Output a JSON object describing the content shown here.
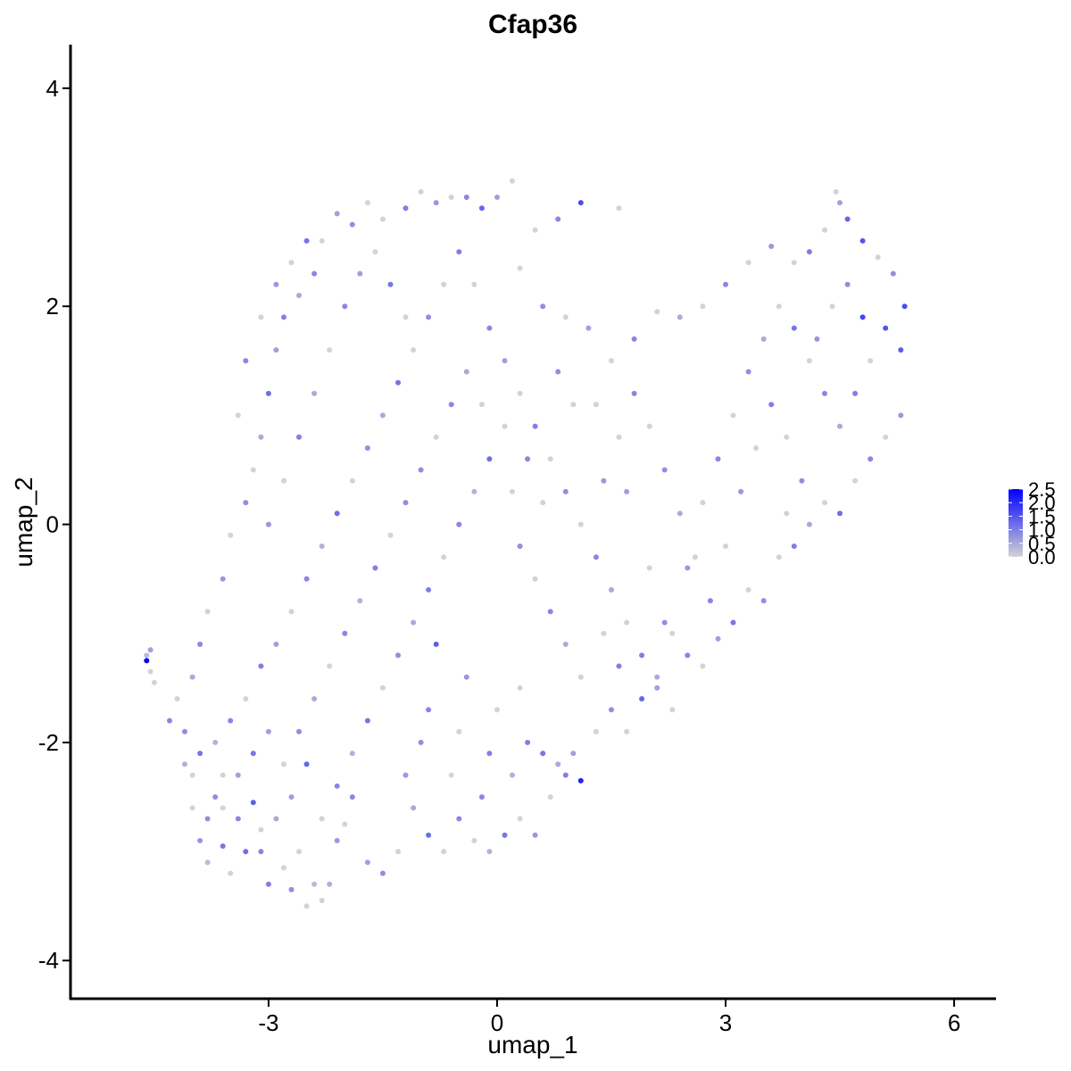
{
  "chart_data": {
    "type": "scatter",
    "title": "Cfap36",
    "xlabel": "umap_1",
    "ylabel": "umap_2",
    "xlim": [
      -5.6,
      6.55
    ],
    "ylim": [
      -4.35,
      4.4
    ],
    "xticks": [
      -3,
      0,
      3,
      6
    ],
    "yticks": [
      -4,
      -2,
      0,
      2,
      4
    ],
    "xtick_labels": [
      "-3",
      "0",
      "3",
      "6"
    ],
    "ytick_labels": [
      "-4",
      "-2",
      "0",
      "2",
      "4"
    ],
    "grid": false,
    "legend": {
      "placement": "right",
      "type": "colorbar",
      "min": 0,
      "max": 2.5,
      "ticks": [
        0,
        0.5,
        1,
        1.5,
        2,
        2.5
      ],
      "tick_labels": [
        "0.0",
        "0.5",
        "1.0",
        "1.5",
        "2.0",
        "2.5"
      ],
      "low_color": "#d3d3d3",
      "high_color": "#0000ff"
    },
    "points": [
      [
        -4.6,
        -1.25,
        2.5
      ],
      [
        -4.6,
        -1.2,
        0.3
      ],
      [
        -4.55,
        -1.15,
        0.6
      ],
      [
        -4.55,
        -1.35,
        0.0
      ],
      [
        -4.5,
        -1.45,
        0.0
      ],
      [
        -4.3,
        -1.8,
        0.9
      ],
      [
        -4.1,
        -2.2,
        0.4
      ],
      [
        -4.0,
        -2.6,
        0.0
      ],
      [
        -3.9,
        -2.9,
        0.7
      ],
      [
        -3.8,
        -3.1,
        0.3
      ],
      [
        -3.7,
        -2.5,
        0.8
      ],
      [
        -3.6,
        -2.95,
        1.1
      ],
      [
        -3.5,
        -3.2,
        0.0
      ],
      [
        -3.4,
        -2.3,
        0.6
      ],
      [
        -3.2,
        -2.55,
        1.4
      ],
      [
        -3.1,
        -3.0,
        0.9
      ],
      [
        -3.0,
        -3.3,
        1.0
      ],
      [
        -2.9,
        -2.7,
        0.5
      ],
      [
        -2.8,
        -3.15,
        0.0
      ],
      [
        -2.7,
        -3.35,
        0.8
      ],
      [
        -2.6,
        -3.0,
        0.0
      ],
      [
        -2.5,
        -3.5,
        0.0
      ],
      [
        -2.4,
        -3.3,
        0.3
      ],
      [
        -2.3,
        -3.45,
        0.0
      ],
      [
        -2.2,
        -3.3,
        0.4
      ],
      [
        -2.1,
        -2.9,
        0.7
      ],
      [
        -2.0,
        -2.75,
        0.0
      ],
      [
        -1.9,
        -2.5,
        0.9
      ],
      [
        -1.7,
        -3.1,
        0.6
      ],
      [
        -1.5,
        -3.2,
        0.8
      ],
      [
        -1.3,
        -3.0,
        0.0
      ],
      [
        -1.1,
        -2.6,
        0.5
      ],
      [
        -0.9,
        -2.85,
        1.2
      ],
      [
        -0.7,
        -3.0,
        0.0
      ],
      [
        -0.5,
        -2.7,
        0.9
      ],
      [
        -0.3,
        -2.9,
        0.0
      ],
      [
        -0.1,
        -3.0,
        0.4
      ],
      [
        0.1,
        -2.85,
        1.1
      ],
      [
        0.3,
        -2.7,
        0.0
      ],
      [
        0.5,
        -2.85,
        0.7
      ],
      [
        0.7,
        -2.5,
        0.0
      ],
      [
        0.9,
        -2.3,
        1.0
      ],
      [
        1.1,
        -2.35,
        2.1
      ],
      [
        1.0,
        -2.1,
        0.6
      ],
      [
        1.3,
        -1.9,
        0.0
      ],
      [
        1.5,
        -1.7,
        0.8
      ],
      [
        1.7,
        -1.9,
        0.0
      ],
      [
        1.9,
        -1.6,
        1.3
      ],
      [
        2.1,
        -1.4,
        0.5
      ],
      [
        2.3,
        -1.0,
        0.0
      ],
      [
        2.5,
        -1.2,
        0.9
      ],
      [
        2.7,
        -1.3,
        0.0
      ],
      [
        2.9,
        -1.05,
        0.6
      ],
      [
        3.1,
        -0.9,
        1.1
      ],
      [
        3.3,
        -0.6,
        0.0
      ],
      [
        3.5,
        -0.7,
        0.8
      ],
      [
        3.7,
        -0.3,
        0.0
      ],
      [
        3.9,
        -0.2,
        1.0
      ],
      [
        4.1,
        0.0,
        0.5
      ],
      [
        4.3,
        0.2,
        0.0
      ],
      [
        4.5,
        0.1,
        1.2
      ],
      [
        4.7,
        0.4,
        0.0
      ],
      [
        4.9,
        0.6,
        0.9
      ],
      [
        5.1,
        0.8,
        0.0
      ],
      [
        5.3,
        1.0,
        0.7
      ],
      [
        5.3,
        1.6,
        1.4
      ],
      [
        5.35,
        2.0,
        1.6
      ],
      [
        5.2,
        2.3,
        0.8
      ],
      [
        5.0,
        2.45,
        0.0
      ],
      [
        4.8,
        2.6,
        1.5
      ],
      [
        4.6,
        2.8,
        1.3
      ],
      [
        4.5,
        2.95,
        0.6
      ],
      [
        4.45,
        3.05,
        0.0
      ],
      [
        4.3,
        2.7,
        0.0
      ],
      [
        4.1,
        2.5,
        1.0
      ],
      [
        3.9,
        2.4,
        0.0
      ],
      [
        3.6,
        2.55,
        0.7
      ],
      [
        3.3,
        2.4,
        0.0
      ],
      [
        3.0,
        2.2,
        0.9
      ],
      [
        2.7,
        2.0,
        0.0
      ],
      [
        2.4,
        1.9,
        0.5
      ],
      [
        2.1,
        1.95,
        0.0
      ],
      [
        1.8,
        1.7,
        0.9
      ],
      [
        1.5,
        1.5,
        0.0
      ],
      [
        1.2,
        1.8,
        0.6
      ],
      [
        0.9,
        1.9,
        0.0
      ],
      [
        0.6,
        2.0,
        0.8
      ],
      [
        0.3,
        2.35,
        0.0
      ],
      [
        1.1,
        2.95,
        1.6
      ],
      [
        1.6,
        2.9,
        0.0
      ],
      [
        0.8,
        2.8,
        0.9
      ],
      [
        0.5,
        2.7,
        0.0
      ],
      [
        0.2,
        3.15,
        0.0
      ],
      [
        0.0,
        3.0,
        0.6
      ],
      [
        -0.2,
        2.9,
        1.3
      ],
      [
        -0.4,
        3.0,
        0.9
      ],
      [
        -0.6,
        3.0,
        0.0
      ],
      [
        -0.8,
        2.95,
        0.7
      ],
      [
        -1.0,
        3.05,
        0.0
      ],
      [
        -1.2,
        2.9,
        1.0
      ],
      [
        -1.5,
        2.8,
        0.0
      ],
      [
        -1.7,
        2.95,
        0.0
      ],
      [
        -1.9,
        2.75,
        0.8
      ],
      [
        -2.1,
        2.85,
        0.6
      ],
      [
        -2.3,
        2.6,
        0.0
      ],
      [
        -2.4,
        2.3,
        0.9
      ],
      [
        -2.6,
        2.1,
        0.5
      ],
      [
        -2.8,
        1.9,
        1.0
      ],
      [
        -2.9,
        1.6,
        0.6
      ],
      [
        -3.0,
        1.2,
        1.2
      ],
      [
        -3.1,
        0.8,
        0.5
      ],
      [
        -3.2,
        0.5,
        0.0
      ],
      [
        -3.3,
        0.2,
        0.8
      ],
      [
        -3.5,
        -0.1,
        0.0
      ],
      [
        -3.6,
        -0.5,
        0.7
      ],
      [
        -3.8,
        -0.8,
        0.0
      ],
      [
        -3.9,
        -1.1,
        0.9
      ],
      [
        -4.0,
        -1.4,
        0.5
      ],
      [
        -4.2,
        -1.6,
        0.0
      ],
      [
        -4.1,
        -1.9,
        0.8
      ],
      [
        -3.9,
        -2.1,
        1.1
      ],
      [
        -3.7,
        -2.0,
        0.4
      ],
      [
        -3.5,
        -1.8,
        0.9
      ],
      [
        -3.3,
        -1.6,
        0.0
      ],
      [
        -3.1,
        -1.3,
        1.0
      ],
      [
        -2.9,
        -1.1,
        0.6
      ],
      [
        -2.7,
        -0.8,
        0.0
      ],
      [
        -2.5,
        -0.5,
        0.9
      ],
      [
        -2.3,
        -0.2,
        0.4
      ],
      [
        -2.1,
        0.1,
        1.2
      ],
      [
        -1.9,
        0.4,
        0.0
      ],
      [
        -1.7,
        0.7,
        0.8
      ],
      [
        -1.5,
        1.0,
        0.5
      ],
      [
        -1.3,
        1.3,
        1.1
      ],
      [
        -1.1,
        1.6,
        0.0
      ],
      [
        -0.9,
        1.9,
        0.8
      ],
      [
        -0.7,
        2.2,
        0.0
      ],
      [
        -0.5,
        2.5,
        1.0
      ],
      [
        -0.3,
        2.2,
        0.0
      ],
      [
        -0.1,
        1.8,
        0.9
      ],
      [
        0.1,
        1.5,
        0.6
      ],
      [
        0.3,
        1.2,
        0.0
      ],
      [
        0.5,
        0.9,
        1.0
      ],
      [
        0.7,
        0.6,
        0.0
      ],
      [
        0.9,
        0.3,
        0.8
      ],
      [
        1.1,
        0.0,
        0.0
      ],
      [
        1.3,
        -0.3,
        0.9
      ],
      [
        1.5,
        -0.6,
        0.5
      ],
      [
        1.7,
        -0.9,
        0.0
      ],
      [
        1.9,
        -1.2,
        1.0
      ],
      [
        2.1,
        -1.5,
        0.6
      ],
      [
        2.3,
        -1.7,
        0.0
      ],
      [
        2.5,
        -0.4,
        0.7
      ],
      [
        2.7,
        0.2,
        0.0
      ],
      [
        2.9,
        0.6,
        0.9
      ],
      [
        3.1,
        1.0,
        0.0
      ],
      [
        3.3,
        1.4,
        0.8
      ],
      [
        3.5,
        1.7,
        0.5
      ],
      [
        3.7,
        2.0,
        0.0
      ],
      [
        3.9,
        1.8,
        1.1
      ],
      [
        4.1,
        1.5,
        0.0
      ],
      [
        4.3,
        1.2,
        0.9
      ],
      [
        4.5,
        0.9,
        0.5
      ],
      [
        4.7,
        1.2,
        1.0
      ],
      [
        4.9,
        1.5,
        0.0
      ],
      [
        5.1,
        1.8,
        1.5
      ],
      [
        4.8,
        1.9,
        1.7
      ],
      [
        4.6,
        2.2,
        0.8
      ],
      [
        4.4,
        2.0,
        0.0
      ],
      [
        4.2,
        1.7,
        0.7
      ],
      [
        -2.5,
        -2.2,
        1.3
      ],
      [
        -2.7,
        -2.5,
        0.6
      ],
      [
        -2.3,
        -2.7,
        0.0
      ],
      [
        -2.1,
        -2.4,
        0.9
      ],
      [
        -1.9,
        -2.1,
        0.4
      ],
      [
        -1.7,
        -1.8,
        1.1
      ],
      [
        -1.5,
        -1.5,
        0.0
      ],
      [
        -1.3,
        -1.2,
        0.8
      ],
      [
        -1.1,
        -0.9,
        0.5
      ],
      [
        -0.9,
        -0.6,
        1.0
      ],
      [
        -0.7,
        -0.3,
        0.0
      ],
      [
        -0.5,
        0.0,
        0.9
      ],
      [
        -0.3,
        0.3,
        0.4
      ],
      [
        -0.1,
        0.6,
        1.2
      ],
      [
        0.1,
        0.9,
        0.0
      ],
      [
        0.3,
        -0.2,
        0.8
      ],
      [
        0.5,
        -0.5,
        0.0
      ],
      [
        0.7,
        -0.8,
        0.9
      ],
      [
        0.9,
        -1.1,
        0.5
      ],
      [
        1.1,
        -1.4,
        0.0
      ],
      [
        -0.8,
        -1.1,
        1.4
      ],
      [
        -0.4,
        -1.4,
        0.7
      ],
      [
        0.0,
        -1.7,
        0.0
      ],
      [
        0.4,
        -2.0,
        1.0
      ],
      [
        0.8,
        -2.2,
        0.5
      ],
      [
        -1.0,
        -2.0,
        0.8
      ],
      [
        -0.6,
        -2.3,
        0.0
      ],
      [
        -0.2,
        -2.5,
        0.9
      ],
      [
        0.2,
        -2.3,
        0.4
      ],
      [
        0.6,
        -2.1,
        1.1
      ],
      [
        -3.0,
        0.0,
        0.7
      ],
      [
        -2.8,
        0.4,
        0.0
      ],
      [
        -2.6,
        0.8,
        1.0
      ],
      [
        -2.4,
        1.2,
        0.5
      ],
      [
        -2.2,
        1.6,
        0.0
      ],
      [
        -2.0,
        2.0,
        0.9
      ],
      [
        -1.8,
        2.3,
        0.6
      ],
      [
        -1.6,
        2.5,
        0.0
      ],
      [
        -1.4,
        2.2,
        1.1
      ],
      [
        -1.2,
        1.9,
        0.0
      ],
      [
        -1.0,
        0.5,
        0.8
      ],
      [
        -0.8,
        0.8,
        0.0
      ],
      [
        -0.6,
        1.1,
        0.9
      ],
      [
        -0.4,
        1.4,
        0.5
      ],
      [
        -0.2,
        1.1,
        0.0
      ],
      [
        1.4,
        0.4,
        0.7
      ],
      [
        1.6,
        0.8,
        0.0
      ],
      [
        1.8,
        1.2,
        0.9
      ],
      [
        2.0,
        0.9,
        0.0
      ],
      [
        2.2,
        0.5,
        0.8
      ],
      [
        2.4,
        0.1,
        0.5
      ],
      [
        2.6,
        -0.3,
        0.0
      ],
      [
        2.8,
        -0.7,
        0.9
      ],
      [
        3.0,
        -0.2,
        0.0
      ],
      [
        3.2,
        0.3,
        0.7
      ],
      [
        3.4,
        0.7,
        0.0
      ],
      [
        3.6,
        1.1,
        1.0
      ],
      [
        3.8,
        0.8,
        0.0
      ],
      [
        4.0,
        0.4,
        0.8
      ],
      [
        3.8,
        0.1,
        0.0
      ],
      [
        -3.4,
        -2.7,
        0.9
      ],
      [
        -3.6,
        -2.3,
        0.0
      ],
      [
        -3.2,
        -2.1,
        1.1
      ],
      [
        -3.0,
        -1.9,
        0.6
      ],
      [
        -2.8,
        -2.2,
        0.0
      ],
      [
        -2.6,
        -1.9,
        0.8
      ],
      [
        -2.4,
        -1.6,
        0.5
      ],
      [
        -2.2,
        -1.3,
        0.0
      ],
      [
        -2.0,
        -1.0,
        0.9
      ],
      [
        -1.8,
        -0.7,
        0.4
      ],
      [
        -1.6,
        -0.4,
        1.0
      ],
      [
        -1.4,
        -0.1,
        0.0
      ],
      [
        -1.2,
        0.2,
        0.8
      ],
      [
        -3.4,
        1.0,
        0.0
      ],
      [
        -3.3,
        1.5,
        0.9
      ],
      [
        -3.1,
        1.9,
        0.0
      ],
      [
        -2.9,
        2.2,
        0.7
      ],
      [
        -2.7,
        2.4,
        0.0
      ],
      [
        -2.5,
        2.6,
        1.1
      ],
      [
        1.3,
        1.1,
        0.0
      ],
      [
        1.7,
        0.3,
        0.6
      ],
      [
        2.0,
        -0.4,
        0.0
      ],
      [
        2.2,
        -0.9,
        0.8
      ],
      [
        1.4,
        -1.0,
        0.0
      ],
      [
        1.6,
        -1.3,
        1.0
      ],
      [
        0.2,
        0.3,
        0.0
      ],
      [
        0.4,
        0.6,
        0.9
      ],
      [
        0.6,
        0.2,
        0.0
      ],
      [
        0.8,
        1.4,
        0.8
      ],
      [
        1.0,
        1.1,
        0.0
      ],
      [
        -0.9,
        -1.7,
        0.9
      ],
      [
        -0.5,
        -1.9,
        0.0
      ],
      [
        -0.1,
        -2.1,
        1.0
      ],
      [
        0.3,
        -1.5,
        0.0
      ],
      [
        -1.2,
        -2.3,
        0.7
      ],
      [
        -4.0,
        -2.3,
        0.0
      ],
      [
        -3.8,
        -2.7,
        0.8
      ],
      [
        -3.6,
        -2.6,
        0.0
      ],
      [
        -3.3,
        -3.0,
        1.2
      ],
      [
        -3.1,
        -2.8,
        0.0
      ]
    ]
  }
}
